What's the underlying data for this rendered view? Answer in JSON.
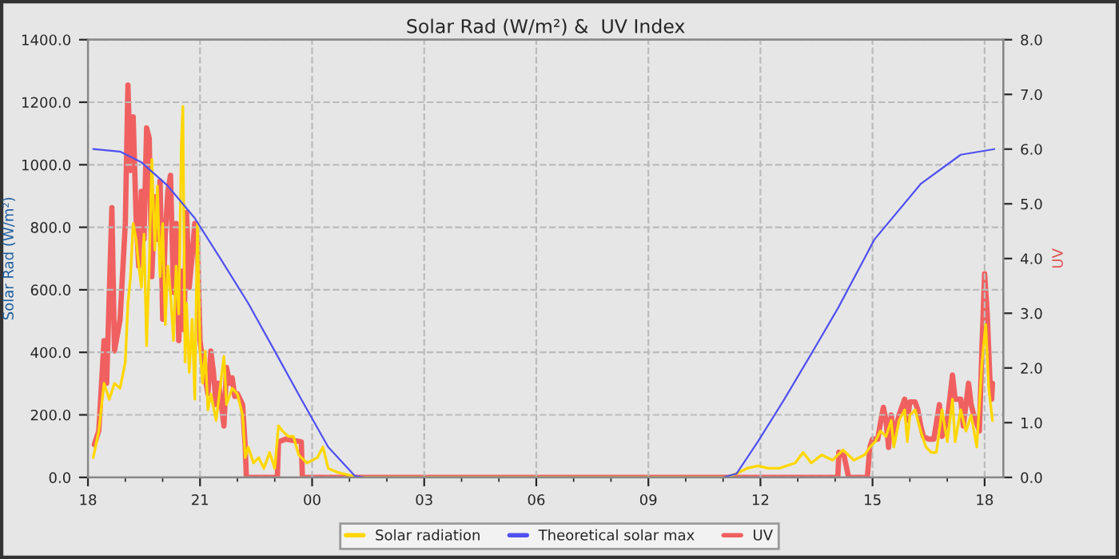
{
  "chart_data": {
    "type": "line",
    "title": "Solar Rad (W/m²) &  UV Index",
    "ylabel": "Solar Rad (W/m²)",
    "y2label": "UV",
    "xlim": [
      18,
      42.5
    ],
    "xticks": [
      {
        "value": 18,
        "label": "18"
      },
      {
        "value": 19,
        "label": null
      },
      {
        "value": 20,
        "label": null
      },
      {
        "value": 21,
        "label": "21"
      },
      {
        "value": 22,
        "label": null
      },
      {
        "value": 23,
        "label": null
      },
      {
        "value": 24,
        "label": "00"
      },
      {
        "value": 25,
        "label": null
      },
      {
        "value": 26,
        "label": null
      },
      {
        "value": 27,
        "label": "03"
      },
      {
        "value": 28,
        "label": null
      },
      {
        "value": 29,
        "label": null
      },
      {
        "value": 30,
        "label": "06"
      },
      {
        "value": 31,
        "label": null
      },
      {
        "value": 32,
        "label": null
      },
      {
        "value": 33,
        "label": "09"
      },
      {
        "value": 34,
        "label": null
      },
      {
        "value": 35,
        "label": null
      },
      {
        "value": 36,
        "label": "12"
      },
      {
        "value": 37,
        "label": null
      },
      {
        "value": 38,
        "label": null
      },
      {
        "value": 39,
        "label": "15"
      },
      {
        "value": 40,
        "label": null
      },
      {
        "value": 41,
        "label": null
      },
      {
        "value": 42,
        "label": "18"
      }
    ],
    "ylim": [
      0,
      1400
    ],
    "yticks": [
      {
        "value": 0,
        "label": "0.0"
      },
      {
        "value": 200,
        "label": "200.0"
      },
      {
        "value": 400,
        "label": "400.0"
      },
      {
        "value": 600,
        "label": "600.0"
      },
      {
        "value": 800,
        "label": "800.0"
      },
      {
        "value": 1000,
        "label": "1000.0"
      },
      {
        "value": 1200,
        "label": "1200.0"
      },
      {
        "value": 1400,
        "label": "1400.0"
      }
    ],
    "y2lim": [
      0,
      8
    ],
    "y2ticks": [
      {
        "value": 0,
        "label": "0.0"
      },
      {
        "value": 1,
        "label": "1.0"
      },
      {
        "value": 2,
        "label": "2.0"
      },
      {
        "value": 3,
        "label": "3.0"
      },
      {
        "value": 4,
        "label": "4.0"
      },
      {
        "value": 5,
        "label": "5.0"
      },
      {
        "value": 6,
        "label": "6.0"
      },
      {
        "value": 7,
        "label": "7.0"
      },
      {
        "value": 8,
        "label": "8.0"
      }
    ],
    "grid": true,
    "legend": "bottom",
    "line_style": "solid",
    "marker": "none",
    "series": [
      {
        "name": "Solar radiation",
        "color": "#ffd700",
        "x": [
          18.14,
          18.29,
          18.43,
          18.57,
          18.71,
          18.86,
          19.0,
          19.07,
          19.14,
          19.21,
          19.29,
          19.36,
          19.43,
          19.5,
          19.57,
          19.64,
          19.71,
          19.79,
          19.86,
          19.93,
          20.0,
          20.07,
          20.14,
          20.21,
          20.29,
          20.36,
          20.43,
          20.5,
          20.54,
          20.6,
          20.64,
          20.71,
          20.79,
          20.86,
          20.93,
          21.0,
          21.07,
          21.14,
          21.21,
          21.29,
          21.43,
          21.57,
          21.64,
          21.71,
          21.86,
          22.0,
          22.14,
          22.21,
          22.29,
          22.43,
          22.57,
          22.71,
          22.86,
          23.0,
          23.1,
          23.21,
          23.36,
          23.5,
          23.64,
          23.86,
          24.14,
          24.29,
          24.43,
          24.71,
          25.0,
          25.29,
          25.6,
          35.07,
          35.36,
          35.64,
          35.93,
          36.21,
          36.5,
          36.93,
          37.14,
          37.36,
          37.64,
          37.93,
          38.21,
          38.5,
          38.79,
          38.93,
          39.07,
          39.21,
          39.36,
          39.5,
          39.57,
          39.71,
          39.86,
          39.93,
          40.0,
          40.14,
          40.29,
          40.43,
          40.57,
          40.71,
          40.86,
          41.0,
          41.14,
          41.21,
          41.36,
          41.5,
          41.64,
          41.79,
          41.93,
          42.03,
          42.11,
          42.21
        ],
        "values": [
          63,
          148,
          301,
          250,
          301,
          285,
          369,
          557,
          642,
          812,
          761,
          676,
          608,
          778,
          421,
          676,
          1017,
          727,
          932,
          642,
          812,
          489,
          676,
          591,
          438,
          676,
          523,
          1068,
          1187,
          369,
          557,
          336,
          506,
          250,
          812,
          404,
          301,
          404,
          216,
          267,
          182,
          318,
          387,
          233,
          285,
          267,
          199,
          63,
          97,
          46,
          63,
          29,
          80,
          29,
          165,
          148,
          131,
          131,
          72,
          46,
          63,
          97,
          29,
          15,
          7,
          0,
          0,
          0,
          12,
          29,
          37,
          29,
          29,
          46,
          80,
          46,
          72,
          55,
          88,
          55,
          72,
          97,
          114,
          148,
          131,
          182,
          97,
          182,
          216,
          114,
          199,
          216,
          148,
          97,
          80,
          80,
          216,
          114,
          250,
          114,
          216,
          148,
          199,
          97,
          369,
          489,
          285,
          182
        ]
      },
      {
        "name": "Theoretical solar max",
        "color": "#5050f0",
        "x": [
          18.14,
          18.86,
          19.43,
          20.14,
          20.86,
          21.57,
          22.29,
          23.0,
          23.71,
          24.43,
          25.14,
          25.4,
          35.0,
          35.36,
          35.93,
          36.64,
          37.36,
          38.07,
          38.79,
          39.05,
          40.3,
          41.36,
          42.26
        ],
        "values": [
          1050,
          1042,
          1008,
          932,
          829,
          695,
          557,
          404,
          250,
          97,
          5,
          0,
          0,
          12,
          114,
          250,
          395,
          540,
          702,
          761,
          940,
          1032,
          1050
        ]
      },
      {
        "name": "UV",
        "color": "#f06060",
        "axis": "y2",
        "x": [
          18.17,
          18.29,
          18.43,
          18.5,
          18.64,
          18.71,
          18.86,
          19.0,
          19.07,
          19.14,
          19.21,
          19.29,
          19.36,
          19.43,
          19.5,
          19.57,
          19.64,
          19.71,
          19.79,
          19.86,
          19.93,
          20.0,
          20.07,
          20.14,
          20.21,
          20.29,
          20.36,
          20.43,
          20.5,
          20.57,
          20.64,
          20.71,
          20.79,
          20.86,
          20.93,
          21.0,
          21.07,
          21.21,
          21.29,
          21.36,
          21.43,
          21.5,
          21.64,
          21.71,
          21.79,
          21.86,
          21.93,
          22.0,
          22.14,
          22.21,
          22.24,
          23.07,
          23.1,
          23.29,
          23.71,
          23.74,
          38.07,
          38.1,
          38.24,
          38.36,
          38.86,
          38.93,
          39.0,
          39.14,
          39.21,
          39.29,
          39.36,
          39.43,
          39.5,
          39.57,
          39.71,
          39.86,
          39.93,
          40.0,
          40.14,
          40.21,
          40.29,
          40.36,
          40.5,
          40.64,
          40.79,
          40.86,
          41.0,
          41.14,
          41.21,
          41.36,
          41.43,
          41.57,
          41.64,
          41.71,
          41.86,
          41.93,
          42.0,
          42.07,
          42.14,
          42.19,
          42.21
        ],
        "values": [
          0.6,
          0.85,
          2.5,
          1.72,
          4.93,
          2.31,
          2.89,
          4.64,
          7.17,
          5.61,
          6.59,
          4.73,
          3.86,
          5.23,
          4.35,
          6.39,
          6.2,
          3.67,
          5.13,
          4.35,
          5.42,
          2.89,
          4.45,
          5.23,
          5.52,
          3.38,
          4.64,
          2.5,
          3.77,
          2.7,
          4.84,
          3.47,
          4.06,
          4.64,
          4.35,
          2.5,
          2.11,
          1.53,
          2.31,
          1.92,
          1.33,
          1.72,
          0.94,
          2.01,
          1.72,
          1.82,
          1.48,
          1.53,
          1.33,
          0.55,
          0,
          0,
          0.65,
          0.7,
          0.65,
          0,
          0,
          0.46,
          0.39,
          0,
          0,
          0.55,
          0.7,
          0.7,
          0.99,
          1.28,
          1.04,
          0.55,
          1.14,
          0.75,
          1.14,
          1.43,
          1.04,
          1.38,
          1.38,
          1.24,
          0.94,
          0.75,
          0.7,
          0.7,
          1.33,
          0.75,
          1.04,
          1.87,
          1.43,
          1.43,
          0.94,
          1.72,
          1.33,
          1.14,
          0.85,
          2.4,
          3.72,
          2.99,
          1.82,
          1.43,
          1.72
        ]
      }
    ]
  }
}
